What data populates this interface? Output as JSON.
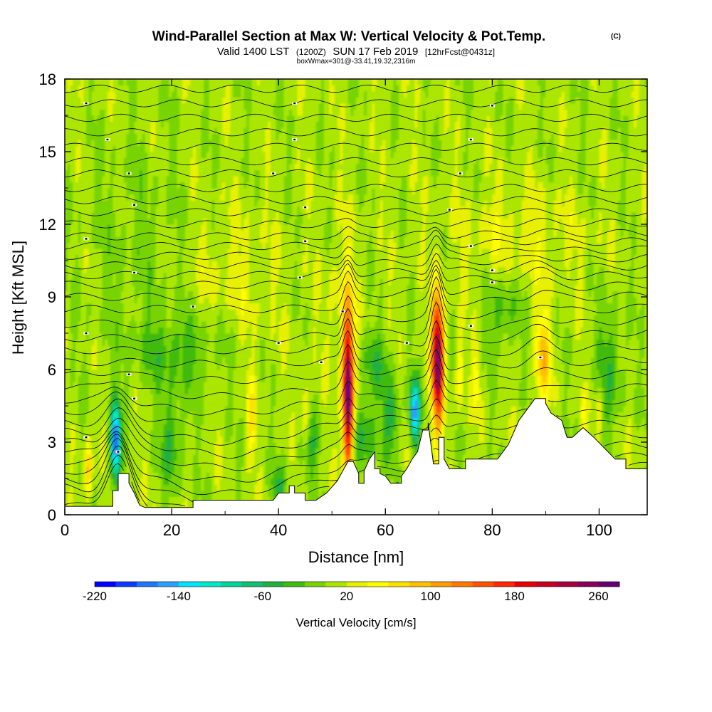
{
  "chart_data": {
    "type": "heatmap",
    "title_main": "Wind-Parallel Section at Max W: Vertical Velocity & Pot.Temp.",
    "title_mark": "(C)",
    "subtitle_a": "Valid 1400 LST",
    "subtitle_b": "(1200Z)",
    "subtitle_c": "SUN 17 Feb 2019",
    "subtitle_d": "[12hrFcst@0431z]",
    "subtitle2": "boxWmax=301@-33.41,19.32,2316m",
    "xlabel": "Distance [nm]",
    "ylabel": "Height [Kft MSL]",
    "xlim": [
      0,
      109
    ],
    "ylim": [
      0,
      18
    ],
    "x_ticks": [
      0,
      20,
      40,
      60,
      80,
      100
    ],
    "y_ticks": [
      0,
      3,
      6,
      9,
      12,
      15,
      18
    ],
    "colorbar": {
      "label": "Vertical Velocity [cm/s]",
      "min": -220,
      "max": 280,
      "ticks": [
        -220,
        -140,
        -60,
        20,
        100,
        180,
        260
      ],
      "colors": [
        "#0000ff",
        "#0a3cff",
        "#1e78ff",
        "#2aa0ff",
        "#00e4ff",
        "#00e8c8",
        "#00d49a",
        "#10c070",
        "#20b040",
        "#40bb10",
        "#78d400",
        "#aae600",
        "#e6f000",
        "#ffff00",
        "#ffe000",
        "#ffc000",
        "#ff9c00",
        "#ff7800",
        "#ff5000",
        "#ff2800",
        "#e80000",
        "#c80020",
        "#a8003c",
        "#880058",
        "#660070"
      ]
    },
    "terrain": [
      [
        0,
        0.35
      ],
      [
        9,
        0.35
      ],
      [
        9,
        1.0
      ],
      [
        10,
        1.0
      ],
      [
        10,
        1.7
      ],
      [
        12,
        1.7
      ],
      [
        12,
        1.3
      ],
      [
        13,
        0.9
      ],
      [
        14,
        0.4
      ],
      [
        15,
        0.3
      ],
      [
        24,
        0.3
      ],
      [
        24,
        0.6
      ],
      [
        39,
        0.6
      ],
      [
        40,
        0.9
      ],
      [
        42,
        0.9
      ],
      [
        42,
        1.2
      ],
      [
        43,
        1.2
      ],
      [
        43,
        0.9
      ],
      [
        45,
        0.9
      ],
      [
        45,
        0.6
      ],
      [
        47,
        0.6
      ],
      [
        49,
        0.9
      ],
      [
        51,
        1.4
      ],
      [
        52,
        1.8
      ],
      [
        53,
        2.2
      ],
      [
        54,
        2.2
      ],
      [
        55,
        1.7
      ],
      [
        55,
        1.3
      ],
      [
        56,
        1.3
      ],
      [
        56,
        1.8
      ],
      [
        57,
        2.3
      ],
      [
        58,
        2.6
      ],
      [
        58,
        1.9
      ],
      [
        59,
        1.9
      ],
      [
        59,
        1.7
      ],
      [
        60,
        1.6
      ],
      [
        61,
        1.3
      ],
      [
        63,
        1.3
      ],
      [
        63,
        1.6
      ],
      [
        64,
        1.9
      ],
      [
        65,
        2.3
      ],
      [
        66,
        2.6
      ],
      [
        67,
        3.5
      ],
      [
        68,
        3.5
      ],
      [
        68,
        3.8
      ],
      [
        69,
        2.1
      ],
      [
        70,
        2.1
      ],
      [
        70,
        3.2
      ],
      [
        71,
        3.2
      ],
      [
        71,
        2.3
      ],
      [
        72,
        1.9
      ],
      [
        75,
        1.9
      ],
      [
        75,
        2.3
      ],
      [
        81,
        2.3
      ],
      [
        82,
        2.6
      ],
      [
        83,
        2.9
      ],
      [
        85,
        3.9
      ],
      [
        88,
        4.8
      ],
      [
        90,
        4.8
      ],
      [
        90,
        4.6
      ],
      [
        91,
        4.2
      ],
      [
        93,
        3.9
      ],
      [
        94,
        3.2
      ],
      [
        95,
        3.2
      ],
      [
        97,
        3.6
      ],
      [
        99,
        3.2
      ],
      [
        103,
        2.3
      ],
      [
        105,
        2.3
      ],
      [
        105,
        1.9
      ],
      [
        109,
        1.9
      ]
    ],
    "theta_labels": [
      [
        4,
        17.0
      ],
      [
        43,
        17.0
      ],
      [
        80,
        16.9
      ],
      [
        8,
        15.5
      ],
      [
        43,
        15.5
      ],
      [
        76,
        15.5
      ],
      [
        12,
        14.1
      ],
      [
        39,
        14.1
      ],
      [
        74,
        14.1
      ],
      [
        13,
        12.8
      ],
      [
        45,
        12.7
      ],
      [
        72,
        12.6
      ],
      [
        4,
        11.4
      ],
      [
        45,
        11.3
      ],
      [
        76,
        11.1
      ],
      [
        13,
        10.0
      ],
      [
        44,
        9.8
      ],
      [
        80,
        10.1
      ],
      [
        80,
        9.6
      ],
      [
        24,
        8.6
      ],
      [
        52,
        8.4
      ],
      [
        4,
        7.5
      ],
      [
        40,
        7.1
      ],
      [
        64,
        7.1
      ],
      [
        76,
        7.8
      ],
      [
        12,
        5.8
      ],
      [
        48,
        6.3
      ],
      [
        89,
        6.5
      ],
      [
        13,
        4.8
      ],
      [
        4,
        3.2
      ],
      [
        10,
        2.6
      ]
    ],
    "updrafts": [
      [
        53,
        5.0,
        280,
        1.0,
        3.2
      ],
      [
        69.8,
        6.4,
        260,
        1.1,
        2.6
      ],
      [
        89.5,
        6.6,
        80,
        1.5,
        1.8
      ],
      [
        4.5,
        1.8,
        90,
        0.7,
        1.1
      ],
      [
        35,
        4.0,
        55,
        0.8,
        1.6
      ],
      [
        45,
        4.2,
        55,
        0.8,
        1.4
      ],
      [
        74,
        5.8,
        50,
        0.7,
        1.6
      ],
      [
        77,
        5.6,
        45,
        0.7,
        1.4
      ],
      [
        97,
        4.2,
        35,
        0.5,
        1.0
      ],
      [
        100,
        4.5,
        35,
        0.6,
        1.2
      ],
      [
        52,
        9.0,
        25,
        3.0,
        3.0
      ],
      [
        85,
        11.5,
        25,
        12.0,
        2.0
      ],
      [
        30,
        9.5,
        18,
        10.0,
        3.5
      ]
    ],
    "downdrafts": [
      [
        9.5,
        3.0,
        -200,
        0.9,
        1.5
      ],
      [
        65.5,
        4.3,
        -160,
        0.9,
        1.3
      ],
      [
        56,
        3.3,
        -60,
        2.0,
        1.4
      ],
      [
        61,
        4.0,
        -55,
        1.7,
        1.5
      ],
      [
        58,
        6.3,
        -40,
        3.0,
        1.3
      ],
      [
        22,
        6.8,
        -40,
        8.0,
        1.6
      ],
      [
        82,
        8.4,
        -38,
        3.0,
        1.6
      ],
      [
        20,
        3.0,
        -50,
        2.0,
        1.8
      ],
      [
        46,
        3.0,
        -45,
        2.0,
        1.2
      ],
      [
        40,
        1.2,
        -45,
        1.5,
        0.8
      ],
      [
        102,
        6.2,
        -40,
        2.5,
        2.6
      ],
      [
        14,
        11.0,
        -15,
        10.0,
        5.0
      ]
    ]
  }
}
